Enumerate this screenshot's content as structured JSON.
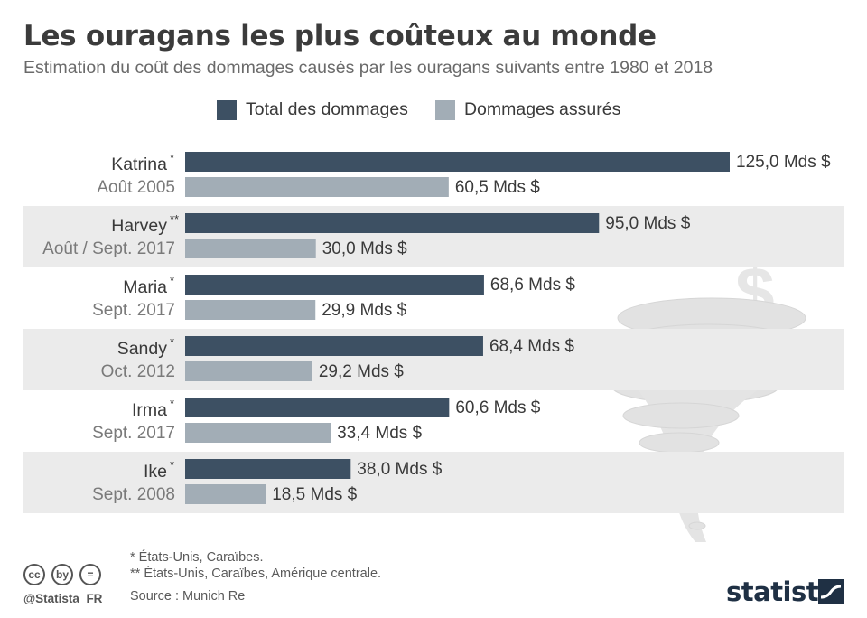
{
  "title": "Les ouragans les plus coûteux au monde",
  "subtitle": "Estimation du coût des dommages causés par les ouragans suivants entre 1980 et 2018",
  "legend": [
    {
      "label": "Total des dommages",
      "color": "#3d5063"
    },
    {
      "label": "Dommages assurés",
      "color": "#a2adb6"
    }
  ],
  "chart_data": {
    "type": "bar",
    "orientation": "horizontal",
    "title": "Les ouragans les plus coûteux au monde",
    "subtitle": "Estimation du coût des dommages causés par les ouragans suivants entre 1980 et 2018",
    "categories": [
      "Katrina",
      "Harvey",
      "Maria",
      "Sandy",
      "Irma",
      "Ike"
    ],
    "markers": [
      "*",
      "**",
      "*",
      "*",
      "*",
      "*"
    ],
    "dates": [
      "Août 2005",
      "Août / Sept. 2017",
      "Sept. 2017",
      "Oct. 2012",
      "Sept. 2017",
      "Sept. 2008"
    ],
    "series": [
      {
        "name": "Total des dommages",
        "values": [
          125.0,
          95.0,
          68.6,
          68.4,
          60.6,
          38.0
        ],
        "labels": [
          "125,0 Mds $",
          "95,0 Mds $",
          "68,6 Mds $",
          "68,4 Mds $",
          "60,6 Mds $",
          "38,0 Mds $"
        ],
        "color": "#3d5063"
      },
      {
        "name": "Dommages assurés",
        "values": [
          60.5,
          30.0,
          29.9,
          29.2,
          33.4,
          18.5
        ],
        "labels": [
          "60,5 Mds $",
          "30,0 Mds $",
          "29,9 Mds $",
          "29,2 Mds $",
          "33,4 Mds $",
          "18,5 Mds $"
        ],
        "color": "#a2adb6"
      }
    ],
    "xlim": [
      0,
      125
    ],
    "legend_position": "top",
    "grid": false,
    "alternating_row_color": "#ebebeb"
  },
  "footnotes": [
    "*   États-Unis, Caraïbes.",
    "** États-Unis, Caraïbes, Amérique centrale."
  ],
  "source": "Source : Munich Re",
  "handle": "@Statista_FR",
  "brand": "statista",
  "cc_icons": [
    "cc",
    "by",
    "="
  ]
}
